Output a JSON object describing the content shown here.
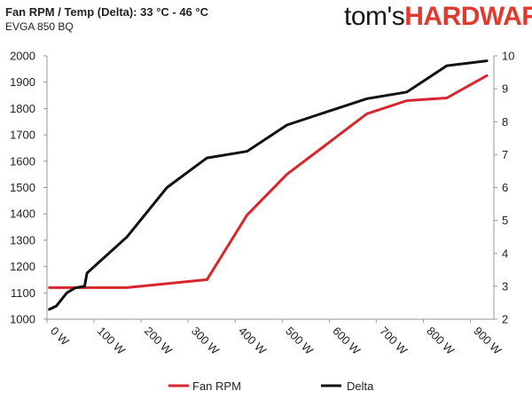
{
  "header": {
    "title": "Fan RPM / Temp (Delta): 33 °C - 46 °C",
    "subtitle": "EVGA 850 BQ",
    "logo_part1": "tom's",
    "logo_part2": "HARDWARE"
  },
  "chart_data": {
    "type": "line",
    "title": "Fan RPM / Temp (Delta): 33 °C - 46 °C",
    "subtitle": "EVGA 850 BQ",
    "xlabel": "",
    "ylabel": "",
    "xlim": [
      0,
      950
    ],
    "ylim": [
      1000,
      2000
    ],
    "y2lim": [
      2,
      10
    ],
    "x_ticks": [
      {
        "value": 0,
        "label": "0 W"
      },
      {
        "value": 100,
        "label": "100 W"
      },
      {
        "value": 200,
        "label": "200 W"
      },
      {
        "value": 300,
        "label": "300 W"
      },
      {
        "value": 400,
        "label": "400 W"
      },
      {
        "value": 500,
        "label": "500 W"
      },
      {
        "value": 600,
        "label": "600 W"
      },
      {
        "value": 700,
        "label": "700 W"
      },
      {
        "value": 800,
        "label": "800 W"
      },
      {
        "value": 900,
        "label": "900 W"
      }
    ],
    "y_ticks": [
      1000,
      1100,
      1200,
      1300,
      1400,
      1500,
      1600,
      1700,
      1800,
      1900,
      2000
    ],
    "y2_ticks": [
      2,
      3,
      4,
      5,
      6,
      7,
      8,
      9,
      10
    ],
    "grid": false,
    "legend": "bottom",
    "series": [
      {
        "name": "Fan RPM",
        "axis": "left",
        "color": "#d7262d",
        "x": [
          5,
          42,
          85,
          170,
          255,
          340,
          425,
          510,
          595,
          680,
          765,
          850,
          935
        ],
        "values": [
          1120,
          1120,
          1120,
          1120,
          1135,
          1150,
          1395,
          1550,
          1665,
          1780,
          1830,
          1840,
          1925
        ]
      },
      {
        "name": "Delta",
        "axis": "right",
        "color": "#111111",
        "x": [
          5,
          20,
          42,
          60,
          80,
          85,
          170,
          255,
          340,
          425,
          510,
          595,
          680,
          765,
          850,
          935
        ],
        "values": [
          2.3,
          2.4,
          2.8,
          2.95,
          3.0,
          3.4,
          4.5,
          6.0,
          6.9,
          7.1,
          7.9,
          8.3,
          8.7,
          8.9,
          9.7,
          9.85
        ]
      }
    ]
  }
}
